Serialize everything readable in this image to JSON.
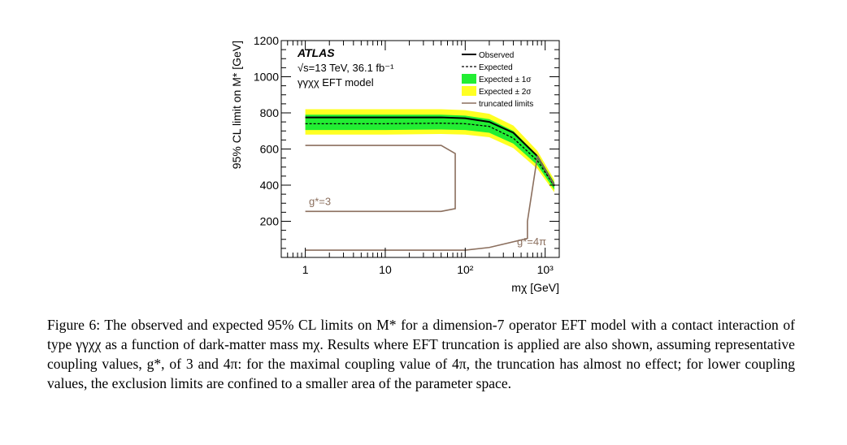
{
  "chart_data": {
    "type": "line",
    "experiment": "ATLAS",
    "energy_lumi": "√s=13 TeV, 36.1 fb⁻¹",
    "model": "γγχχ EFT model",
    "xlabel": "m_χ [GeV]",
    "ylabel": "95% CL limit on M* [GeV]",
    "xscale": "log",
    "xlim": [
      0.5,
      1500
    ],
    "ylim": [
      0,
      1200
    ],
    "x_ticks": [
      1,
      10,
      100,
      1000
    ],
    "x_tick_labels": [
      "1",
      "10",
      "10²",
      "10³"
    ],
    "y_ticks": [
      200,
      400,
      600,
      800,
      1000,
      1200
    ],
    "y_tick_labels": [
      "200",
      "400",
      "600",
      "800",
      "1000",
      "1200"
    ],
    "legend_position": "top-right",
    "legend": [
      "Observed",
      "Expected",
      "Expected ± 1σ",
      "Expected ± 2σ",
      "truncated limits"
    ],
    "colors": {
      "observed": "#000000",
      "expected": "#000000",
      "band_1sigma": "#22ee33",
      "band_2sigma": "#ffff22",
      "truncated": "#8b6f5e"
    },
    "series": [
      {
        "name": "Observed",
        "x": [
          1,
          10,
          50,
          100,
          200,
          400,
          800,
          1300
        ],
        "y": [
          775,
          775,
          775,
          770,
          750,
          690,
          560,
          400
        ]
      },
      {
        "name": "Expected",
        "x": [
          1,
          10,
          50,
          100,
          200,
          400,
          800,
          1300
        ],
        "y": [
          740,
          740,
          743,
          740,
          725,
          660,
          535,
          395
        ]
      },
      {
        "name": "Expected ± 1σ",
        "x": [
          1,
          10,
          50,
          100,
          200,
          400,
          800,
          1300
        ],
        "low": [
          705,
          705,
          708,
          705,
          690,
          630,
          510,
          375
        ],
        "high": [
          790,
          790,
          790,
          785,
          765,
          700,
          565,
          415
        ]
      },
      {
        "name": "Expected ± 2σ",
        "x": [
          1,
          10,
          50,
          100,
          200,
          400,
          800,
          1300
        ],
        "low": [
          680,
          680,
          683,
          680,
          665,
          605,
          490,
          360
        ],
        "high": [
          820,
          820,
          820,
          815,
          795,
          730,
          590,
          430
        ]
      }
    ],
    "truncated_limits": [
      {
        "label": "g*=3",
        "x": [
          1,
          50,
          75,
          75,
          50,
          1
        ],
        "y": [
          620,
          620,
          575,
          270,
          255,
          255
        ]
      },
      {
        "label": "g*=4π",
        "x": [
          1,
          100,
          200,
          600,
          600,
          800,
          1300
        ],
        "y": [
          40,
          40,
          55,
          105,
          200,
          560,
          400
        ]
      }
    ]
  },
  "caption": {
    "text": "Figure 6: The observed and expected 95% CL limits on M* for a dimension-7 operator EFT model with a contact interaction of type γγχχ as a function of dark-matter mass mχ. Results where EFT truncation is applied are also shown, assuming representative coupling values, g*, of 3 and 4π: for the maximal coupling value of 4π, the truncation has almost no effect; for lower coupling values, the exclusion limits are confined to a smaller area of the parameter space."
  }
}
